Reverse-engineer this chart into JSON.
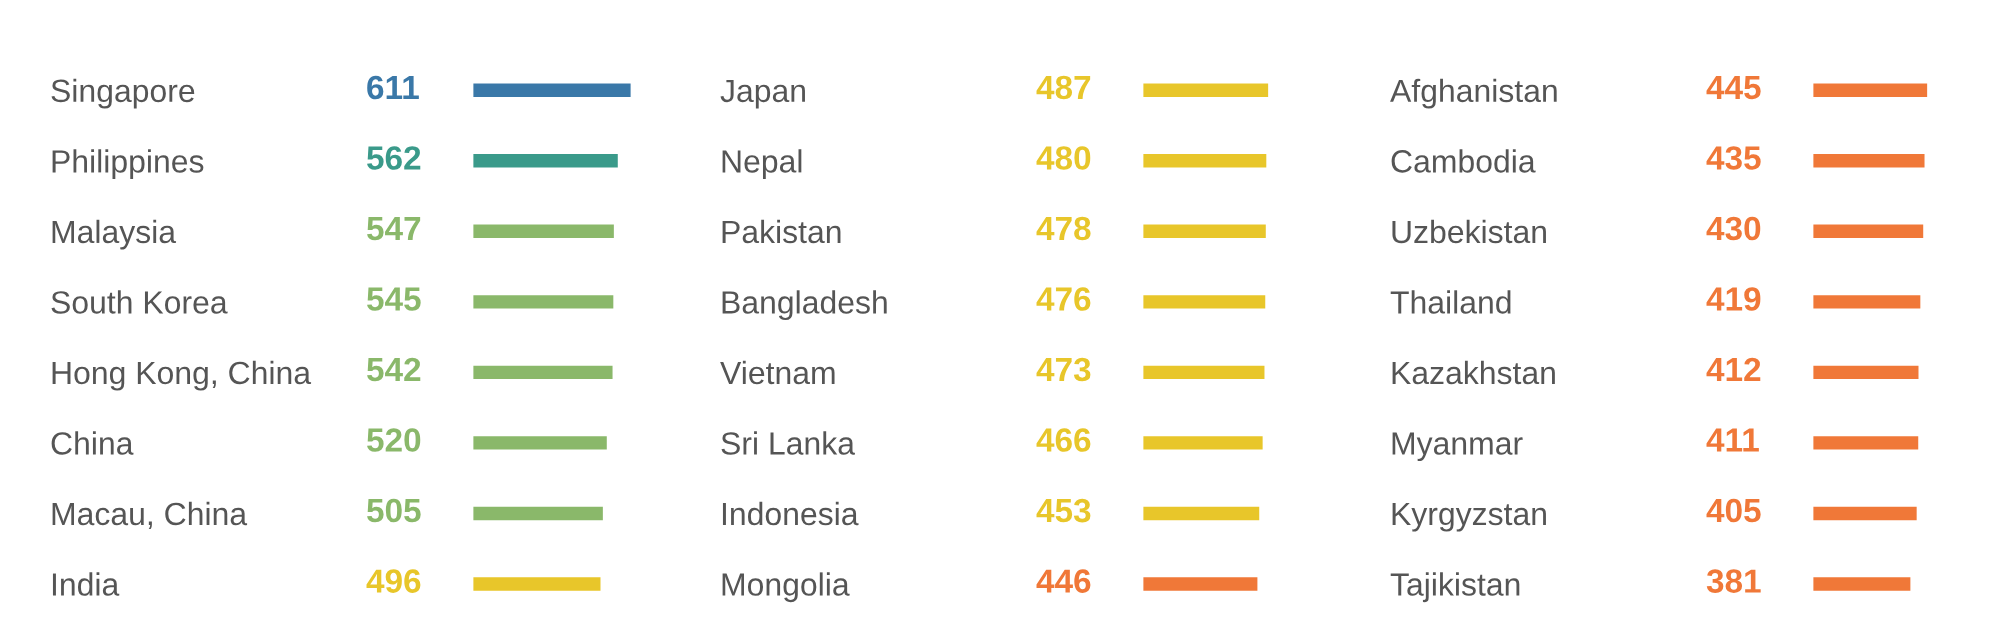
{
  "chart_data": [
    {
      "type": "bar",
      "orientation": "horizontal",
      "data_labels": true,
      "categories": [
        "Singapore",
        "Philippines",
        "Malaysia",
        "South Korea",
        "Hong Kong, China",
        "China",
        "Macau, China",
        "India"
      ],
      "values": [
        611,
        562,
        547,
        545,
        542,
        520,
        505,
        496
      ],
      "colors": [
        "#3a78a8",
        "#3a9a8a",
        "#8ab86a",
        "#8ab86a",
        "#8ab86a",
        "#8ab86a",
        "#8ab86a",
        "#e8c62a"
      ]
    },
    {
      "type": "bar",
      "orientation": "horizontal",
      "data_labels": true,
      "categories": [
        "Japan",
        "Nepal",
        "Pakistan",
        "Bangladesh",
        "Vietnam",
        "Sri Lanka",
        "Indonesia",
        "Mongolia"
      ],
      "values": [
        487,
        480,
        478,
        476,
        473,
        466,
        453,
        446
      ],
      "colors": [
        "#e8c62a",
        "#e8c62a",
        "#e8c62a",
        "#e8c62a",
        "#e8c62a",
        "#e8c62a",
        "#e8c62a",
        "#f07838"
      ]
    },
    {
      "type": "bar",
      "orientation": "horizontal",
      "data_labels": true,
      "categories": [
        "Afghanistan",
        "Cambodia",
        "Uzbekistan",
        "Thailand",
        "Kazakhstan",
        "Myanmar",
        "Kyrgyzstan",
        "Tajikistan"
      ],
      "values": [
        445,
        435,
        430,
        419,
        412,
        411,
        405,
        381
      ],
      "colors": [
        "#f07838",
        "#f07838",
        "#f07838",
        "#f07838",
        "#f07838",
        "#f07838",
        "#f07838",
        "#f07838"
      ]
    }
  ]
}
